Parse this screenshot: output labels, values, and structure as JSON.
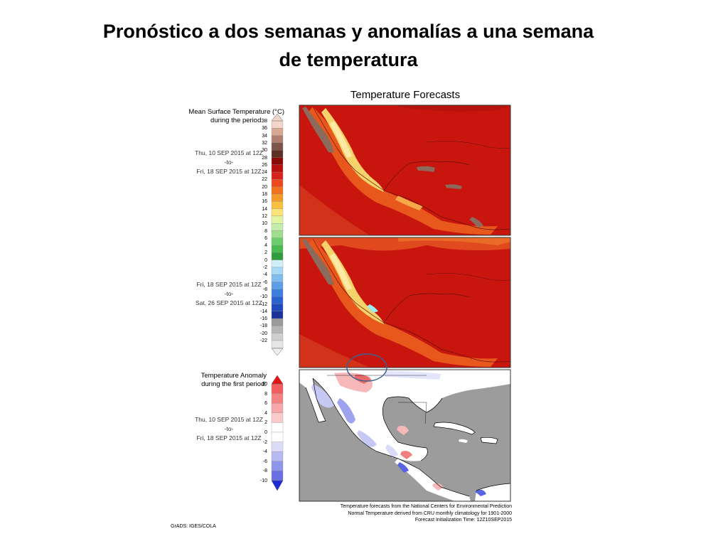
{
  "slide": {
    "title_line1": "Pronóstico a dos semanas y anomalías a una semana",
    "title_line2": "de temperatura"
  },
  "figure": {
    "title": "Temperature Forecasts",
    "mean_label_line1": "Mean Surface Temperature (°C)",
    "mean_label_line2": "during the period:",
    "anomaly_label_line1": "Temperature Anomaly",
    "anomaly_label_line2": "during the first period:",
    "period1": {
      "start": "Thu, 10 SEP 2015 at 12Z",
      "sep": "-to-",
      "end": "Fri, 18 SEP 2015 at 12Z"
    },
    "period2": {
      "start": "Fri, 18 SEP 2015 at 12Z",
      "sep": "-to-",
      "end": "Sat, 26 SEP 2015 at 12Z"
    },
    "period3": {
      "start": "Thu, 10 SEP 2015 at 12Z",
      "sep": "-to-",
      "end": "Fri, 18 SEP 2015 at 12Z"
    },
    "temp_scale": [
      "38",
      "36",
      "34",
      "32",
      "30",
      "28",
      "26",
      "24",
      "22",
      "20",
      "18",
      "16",
      "14",
      "12",
      "10",
      "8",
      "6",
      "4",
      "2",
      "0",
      "-2",
      "-4",
      "-6",
      "-8",
      "-10",
      "-12",
      "-14",
      "-16",
      "-18",
      "-20",
      "-22"
    ],
    "anomaly_scale": [
      "10",
      "8",
      "6",
      "4",
      "2",
      "0",
      "-2",
      "-4",
      "-6",
      "-8",
      "-10"
    ],
    "footer_line1": "Temperature forecasts from the National Centers for Environmental Prediction",
    "footer_line2": "Normal Temperature derived from CRU monthly climatology for 1901-2000",
    "footer_line3": "Forecast Initialization Time: 12Z10SEP2015",
    "credit": "GrADS: IGES/COLA"
  },
  "colors": {
    "forecast_red": "#c8160f",
    "forecast_orange": "#e8581c",
    "forecast_yellow": "#f6d36a",
    "highland_brown": "#8d6b5c",
    "anomaly_land": "#ffffff",
    "anomaly_ocean": "#9c9c9c",
    "highlight_ellipse": "#3d5f8e"
  }
}
